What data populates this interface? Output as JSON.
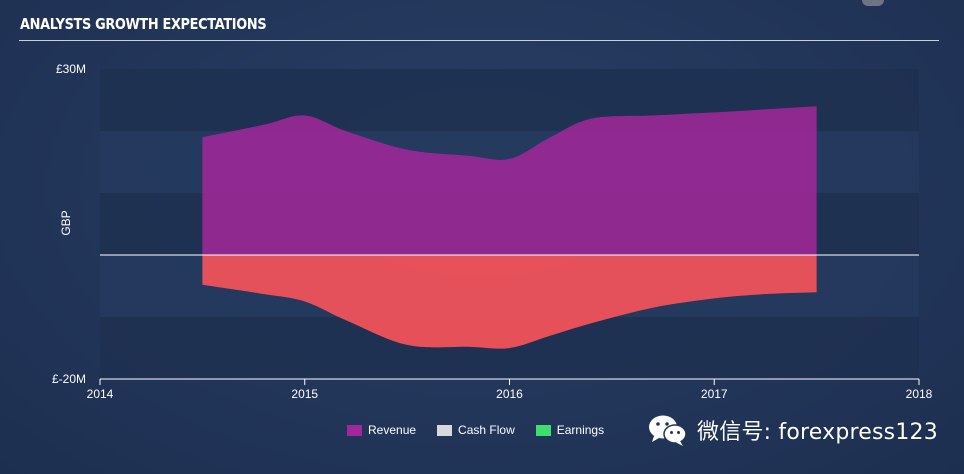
{
  "header": {
    "title": "ANALYSTS GROWTH EXPECTATIONS"
  },
  "chart_data": {
    "type": "area",
    "title": "ANALYSTS GROWTH EXPECTATIONS",
    "xlabel": "",
    "ylabel": "GBP",
    "x_ticks": [
      "2014",
      "2015",
      "2016",
      "2017",
      "2018"
    ],
    "y_ticks": [
      "£30M",
      "£-20M"
    ],
    "xlim": [
      2014,
      2018
    ],
    "ylim": [
      -20,
      30
    ],
    "units": "£M",
    "grid": "horizontal bands",
    "legend_position": "bottom-center",
    "series": [
      {
        "name": "Revenue",
        "color": "#a3279a",
        "x": [
          2014.5,
          2014.8,
          2015.0,
          2015.2,
          2015.5,
          2015.8,
          2016.0,
          2016.2,
          2016.4,
          2016.7,
          2017.0,
          2017.25,
          2017.5
        ],
        "values": [
          19.0,
          21.0,
          22.5,
          20.0,
          17.0,
          16.0,
          15.5,
          19.0,
          22.0,
          22.5,
          23.0,
          23.5,
          24.0
        ]
      },
      {
        "name": "Cash Flow",
        "color": "#d9d9d9",
        "x": [],
        "values": []
      },
      {
        "name": "Earnings",
        "color": "#3ce06a",
        "x": [
          2014.5,
          2014.8,
          2015.0,
          2015.2,
          2015.5,
          2015.8,
          2016.0,
          2016.2,
          2016.4,
          2016.7,
          2017.0,
          2017.25,
          2017.5
        ],
        "values": [
          -4.8,
          -6.3,
          -7.5,
          -10.5,
          -14.5,
          -14.8,
          -15.0,
          -13.0,
          -11.0,
          -8.5,
          -7.0,
          -6.3,
          -6.0
        ],
        "fill_color": "#f0525a"
      }
    ]
  },
  "legend": {
    "items": [
      {
        "label": "Revenue",
        "color": "#a3279a"
      },
      {
        "label": "Cash Flow",
        "color": "#d9d9d9"
      },
      {
        "label": "Earnings",
        "color": "#3ce06a"
      }
    ]
  },
  "watermark": {
    "text": "微信号: forexpress123",
    "icon": "wechat-icon"
  }
}
